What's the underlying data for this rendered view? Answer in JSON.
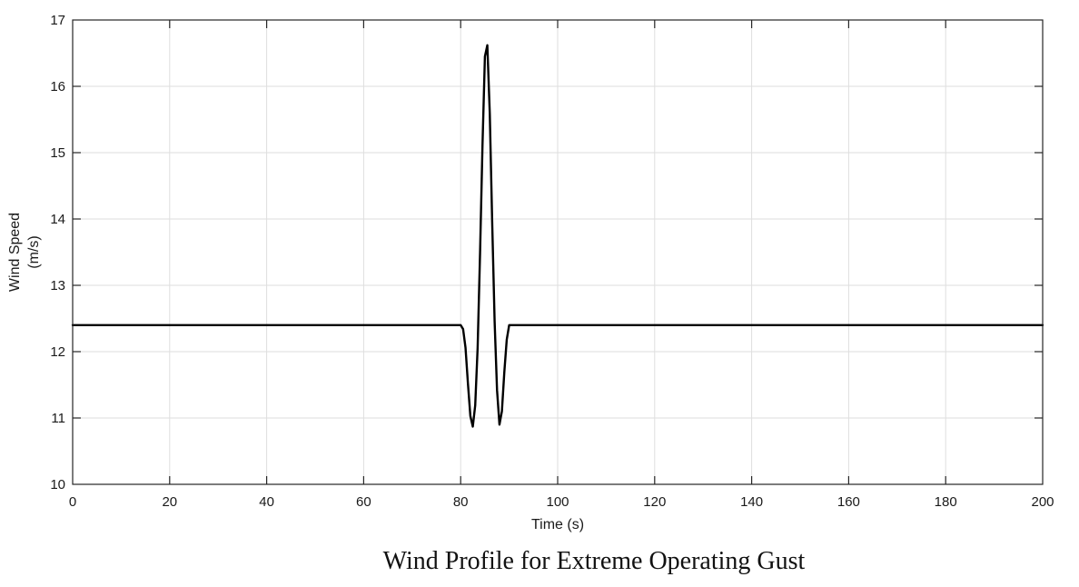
{
  "chart_data": {
    "type": "line",
    "xlabel": "Time (s)",
    "ylabel_lines": [
      "Wind Speed",
      "(m/s)"
    ],
    "xlim": [
      0,
      200
    ],
    "ylim": [
      10,
      17
    ],
    "xticks": [
      0,
      20,
      40,
      60,
      80,
      100,
      120,
      140,
      160,
      180,
      200
    ],
    "yticks": [
      10,
      11,
      12,
      13,
      14,
      15,
      16,
      17
    ],
    "grid": true,
    "series": [
      {
        "color": "#000000",
        "x": [
          0,
          80,
          80.5,
          81,
          81.5,
          82,
          82.5,
          83,
          83.5,
          84,
          84.5,
          85,
          85.5,
          86,
          86.5,
          87,
          87.5,
          88,
          88.5,
          89,
          89.5,
          90,
          200
        ],
        "y": [
          12.4,
          12.4,
          12.34,
          12.06,
          11.52,
          11.03,
          10.87,
          11.19,
          12.06,
          13.49,
          15.11,
          16.45,
          16.62,
          15.6,
          13.95,
          12.46,
          11.42,
          10.9,
          11.1,
          11.69,
          12.18,
          12.4,
          12.4
        ]
      }
    ]
  },
  "caption": "Wind Profile for Extreme Operating Gust"
}
